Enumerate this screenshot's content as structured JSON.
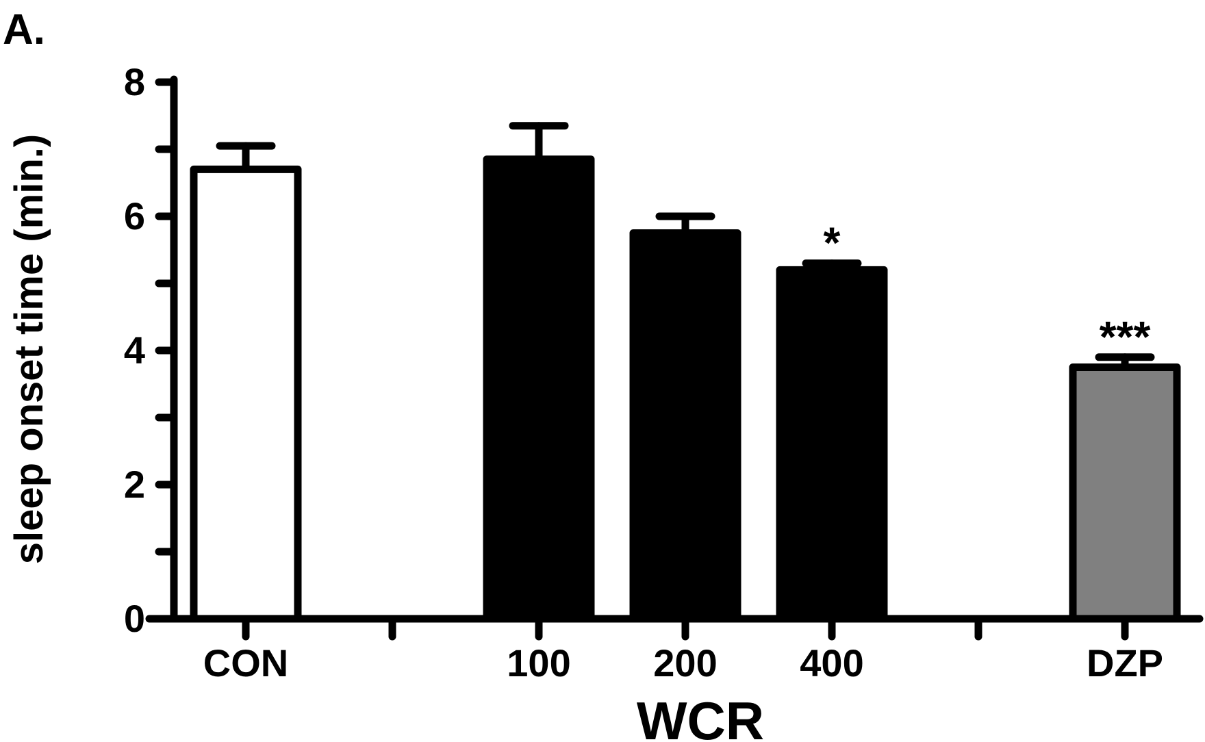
{
  "panel_label": "A.",
  "chart_data": {
    "type": "bar",
    "ylabel": "sleep onset time (min.)",
    "xlabel": "WCR",
    "ylim": [
      0,
      8
    ],
    "yticks_major": [
      0,
      2,
      4,
      6,
      8
    ],
    "yticks_minor": [
      1,
      3,
      5,
      7
    ],
    "grid": false,
    "legend": "none",
    "categories": [
      "CON",
      "",
      "100",
      "200",
      "400",
      "",
      "DZP"
    ],
    "bars": [
      {
        "category": "CON",
        "value": 6.7,
        "error": 0.35,
        "fill": "#ffffff",
        "annotation": ""
      },
      {
        "category": "100",
        "value": 6.85,
        "error": 0.5,
        "fill": "#000000",
        "annotation": ""
      },
      {
        "category": "200",
        "value": 5.75,
        "error": 0.25,
        "fill": "#000000",
        "annotation": ""
      },
      {
        "category": "400",
        "value": 5.2,
        "error": 0.1,
        "fill": "#000000",
        "annotation": "*"
      },
      {
        "category": "DZP",
        "value": 3.75,
        "error": 0.15,
        "fill": "#808080",
        "annotation": "***"
      }
    ]
  }
}
